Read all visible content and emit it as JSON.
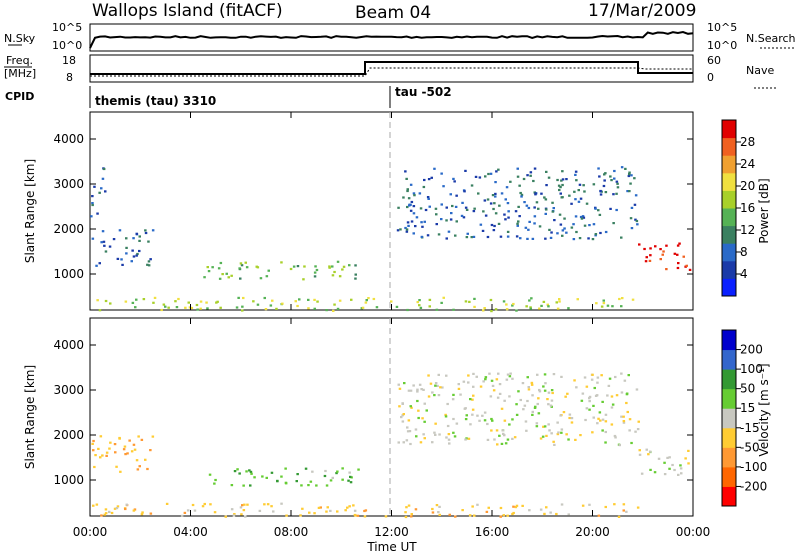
{
  "header": {
    "title_left": "Wallops Island (fitACF)",
    "title_mid": "Beam 04",
    "title_right": "17/Mar/2009"
  },
  "strip1": {
    "left_label": "N.Sky",
    "right_label": "N.Search",
    "left_ticks": [
      "10^5",
      "10^0"
    ],
    "right_ticks": [
      "10^5",
      "10^0"
    ]
  },
  "strip2": {
    "left_label_1": "Freq.",
    "left_label_2": "[MHz]",
    "right_label": "Nave",
    "left_ticks": [
      "18",
      "8"
    ],
    "right_ticks": [
      "60",
      "0"
    ]
  },
  "cpid": {
    "label": "CPID",
    "entries": [
      {
        "text": "themis (tau) 3310",
        "start_hour": 0
      },
      {
        "text": "tau -502",
        "start_hour": 12
      }
    ]
  },
  "colors": {
    "power": [
      "#0a20ff",
      "#1a3aa8",
      "#2a6ac8",
      "#3a8060",
      "#55b255",
      "#a8d02a",
      "#f0e040",
      "#f0a030",
      "#f06020",
      "#e00000"
    ],
    "velocity": [
      "#ff0000",
      "#ff6600",
      "#ff9933",
      "#ffcc33",
      "#c8c8c0",
      "#66cc33",
      "#339933",
      "#3366cc",
      "#0000cc"
    ]
  },
  "chart_data": [
    {
      "type": "heatmap",
      "name": "power",
      "xlabel": "",
      "ylabel": "Slant Range [km]",
      "x_range_hours": [
        0,
        24
      ],
      "ylim": [
        200,
        4600
      ],
      "y_ticks": [
        "1000",
        "2000",
        "3000",
        "4000"
      ],
      "colorbar": {
        "label": "Power [dB]",
        "ticks": [
          "4",
          "8",
          "12",
          "16",
          "20",
          "24",
          "28"
        ],
        "range": [
          0,
          30
        ]
      },
      "regions": [
        {
          "x": [
            0.0,
            2.5
          ],
          "y": [
            1200,
            2000
          ],
          "level": 2
        },
        {
          "x": [
            0.0,
            0.6
          ],
          "y": [
            2300,
            3400
          ],
          "level": 2
        },
        {
          "x": [
            4.5,
            10.8
          ],
          "y": [
            900,
            1300
          ],
          "level": 4
        },
        {
          "x": [
            12.2,
            21.8
          ],
          "y": [
            1800,
            3400
          ],
          "level": 2
        },
        {
          "x": [
            21.8,
            24.0
          ],
          "y": [
            1100,
            1700
          ],
          "level": 9
        },
        {
          "x": [
            0.0,
            22.0
          ],
          "y": [
            200,
            500
          ],
          "level": 5
        }
      ]
    },
    {
      "type": "heatmap",
      "name": "velocity",
      "xlabel": "Time UT",
      "ylabel": "Slant Range [km]",
      "x_range_hours": [
        0,
        24
      ],
      "ylim": [
        200,
        4600
      ],
      "y_ticks": [
        "1000",
        "2000",
        "3000",
        "4000"
      ],
      "x_ticks": [
        "00:00",
        "04:00",
        "08:00",
        "12:00",
        "16:00",
        "20:00",
        "00:00"
      ],
      "colorbar": {
        "label": "Velocity [m s⁻¹]",
        "ticks": [
          "200",
          "100",
          "50",
          "15",
          "-15",
          "-50",
          "-100",
          "-200"
        ],
        "range": [
          -250,
          250
        ]
      },
      "regions": [
        {
          "x": [
            0.0,
            2.5
          ],
          "y": [
            1200,
            2000
          ],
          "level": -50
        },
        {
          "x": [
            4.5,
            10.8
          ],
          "y": [
            900,
            1300
          ],
          "level": 40
        },
        {
          "x": [
            12.2,
            21.8
          ],
          "y": [
            1800,
            3400
          ],
          "level": 0
        },
        {
          "x": [
            21.8,
            24.0
          ],
          "y": [
            1100,
            1700
          ],
          "level": 0
        },
        {
          "x": [
            0.0,
            22.0
          ],
          "y": [
            200,
            500
          ],
          "level": -30
        }
      ]
    }
  ]
}
